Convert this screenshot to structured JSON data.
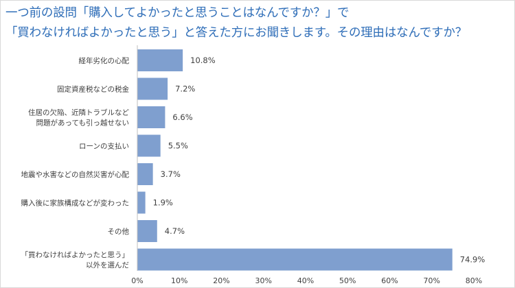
{
  "chart_data": {
    "type": "bar",
    "orientation": "horizontal",
    "title_lines": [
      "一つ前の設問「購入してよかったと思うことはなんですか？」で",
      "「買わなければよかったと思う」と答えた方にお聞きします。その理由はなんですか？"
    ],
    "categories": [
      [
        "経年劣化の心配"
      ],
      [
        "固定資産税などの税金"
      ],
      [
        "住居の欠陥、近隣トラブルなど",
        "問題があっても引っ越せない"
      ],
      [
        "ローンの支払い"
      ],
      [
        "地震や水害などの自然災害が心配"
      ],
      [
        "購入後に家族構成などが変わった"
      ],
      [
        "その他"
      ],
      [
        "「買わなければよかったと思う」",
        "以外を選んだ"
      ]
    ],
    "values": [
      10.8,
      7.2,
      6.6,
      5.5,
      3.7,
      1.9,
      4.7,
      74.9
    ],
    "value_labels": [
      "10.8%",
      "7.2%",
      "6.6%",
      "5.5%",
      "3.7%",
      "1.9%",
      "4.7%",
      "74.9%"
    ],
    "xlim": [
      0,
      80
    ],
    "x_ticks": [
      0,
      10,
      20,
      30,
      40,
      50,
      60,
      70,
      80
    ],
    "x_tick_labels": [
      "0%",
      "10%",
      "20%",
      "30%",
      "40%",
      "50%",
      "60%",
      "70%",
      "80%"
    ],
    "grid": false,
    "legend": "none",
    "bar_color": "#7f9fcf",
    "title_color": "#2f6eb8"
  }
}
